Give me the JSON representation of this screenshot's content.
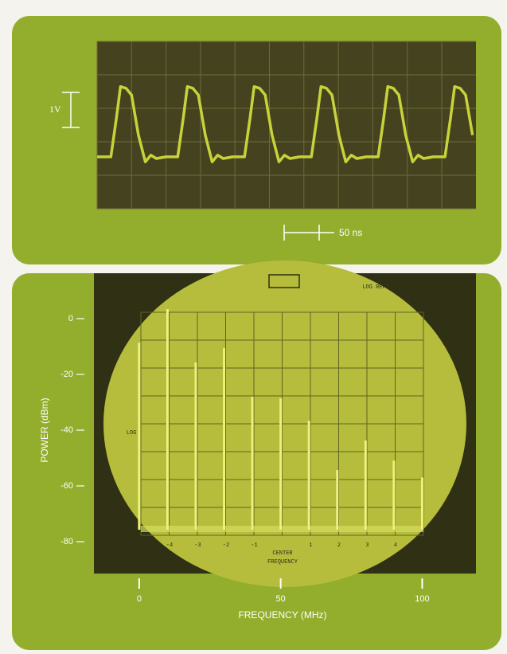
{
  "chart_data": [
    {
      "type": "line",
      "color": "#c8d23a",
      "annotations": [
        "1V",
        "50 ns"
      ],
      "xlim": [
        0,
        550
      ],
      "ylim": [
        -2.5,
        2.5
      ],
      "x": [
        0,
        20,
        28,
        34,
        42,
        50,
        60,
        70,
        78,
        86,
        100,
        117,
        125,
        131,
        139,
        147,
        157,
        167,
        175,
        183,
        197,
        214,
        222,
        228,
        236,
        244,
        254,
        264,
        272,
        280,
        294,
        311,
        319,
        325,
        333,
        341,
        351,
        361,
        369,
        377,
        391,
        408,
        416,
        422,
        430,
        438,
        448,
        458,
        466,
        474,
        488,
        505,
        513,
        519,
        527,
        535,
        545
      ],
      "values": [
        -0.95,
        -0.95,
        0.2,
        1.15,
        1.1,
        0.9,
        -0.3,
        -1.1,
        -0.9,
        -1.0,
        -0.95,
        -0.95,
        0.2,
        1.15,
        1.1,
        0.9,
        -0.3,
        -1.1,
        -0.9,
        -1.0,
        -0.95,
        -0.95,
        0.2,
        1.15,
        1.1,
        0.9,
        -0.3,
        -1.1,
        -0.9,
        -1.0,
        -0.95,
        -0.95,
        0.2,
        1.15,
        1.1,
        0.9,
        -0.3,
        -1.1,
        -0.9,
        -1.0,
        -0.95,
        -0.95,
        0.2,
        1.15,
        1.1,
        0.9,
        -0.3,
        -1.1,
        -0.9,
        -1.0,
        -0.95,
        -0.95,
        0.2,
        1.15,
        1.1,
        0.9,
        -0.3
      ]
    },
    {
      "type": "bar",
      "color": "#eef27a",
      "x_label": "FREQUENCY (MHz)",
      "y_label": "POWER (dBm)",
      "screen_labels": [
        "LOG REF",
        "LOG",
        "CENTER",
        "FREQUENCY",
        "-4",
        "-3",
        "-2",
        "-1",
        "1",
        "2",
        "3",
        "4"
      ],
      "x": [
        0,
        10,
        20,
        30,
        40,
        50,
        60,
        70,
        80,
        90,
        100
      ],
      "values": [
        -8.6,
        3.4,
        -15.7,
        -10.6,
        -28,
        -28.6,
        -36.6,
        -54.3,
        -43.7,
        -50.9,
        -57
      ],
      "xlim": [
        -16,
        119
      ],
      "ylim": [
        -90,
        15
      ],
      "xticks": [
        0,
        50,
        100
      ],
      "yticks": [
        0,
        -20,
        -40,
        -60,
        -80
      ]
    }
  ]
}
